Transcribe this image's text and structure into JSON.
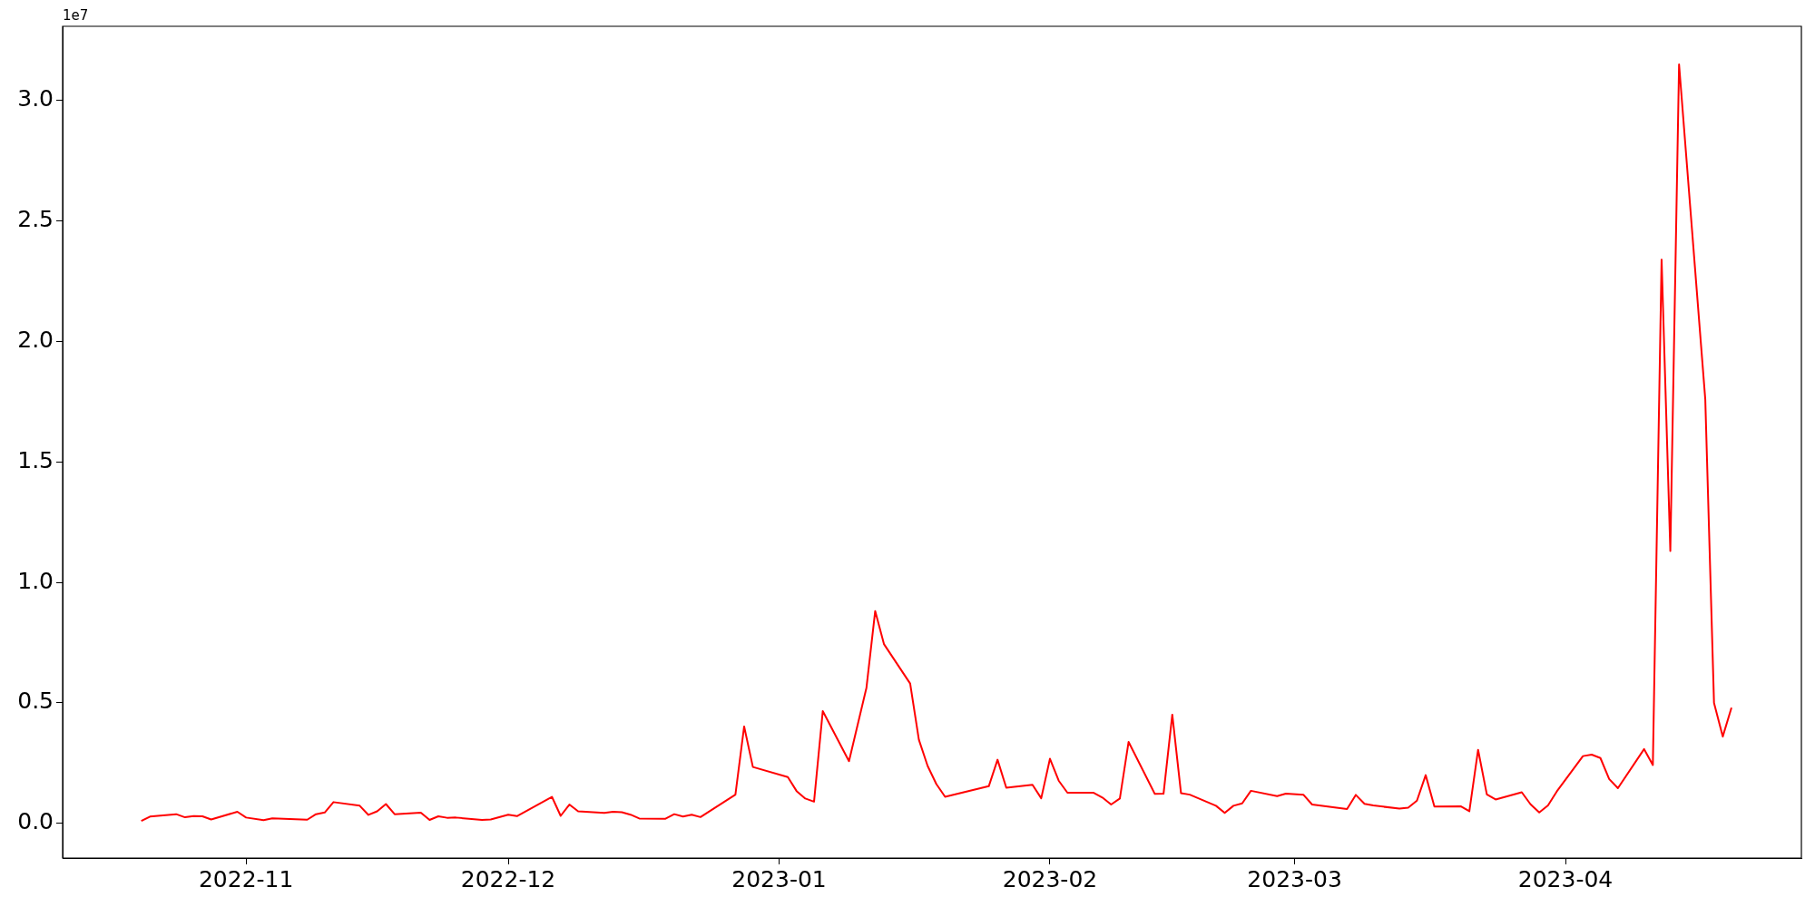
{
  "chart_data": {
    "type": "line",
    "x": [
      "2022-10-20",
      "2022-10-21",
      "2022-10-24",
      "2022-10-25",
      "2022-10-26",
      "2022-10-27",
      "2022-10-28",
      "2022-10-31",
      "2022-11-01",
      "2022-11-03",
      "2022-11-04",
      "2022-11-08",
      "2022-11-09",
      "2022-11-10",
      "2022-11-11",
      "2022-11-14",
      "2022-11-15",
      "2022-11-16",
      "2022-11-17",
      "2022-11-18",
      "2022-11-21",
      "2022-11-22",
      "2022-11-23",
      "2022-11-24",
      "2022-11-25",
      "2022-11-28",
      "2022-11-29",
      "2022-12-01",
      "2022-12-02",
      "2022-12-06",
      "2022-12-07",
      "2022-12-08",
      "2022-12-09",
      "2022-12-12",
      "2022-12-13",
      "2022-12-14",
      "2022-12-15",
      "2022-12-16",
      "2022-12-19",
      "2022-12-20",
      "2022-12-21",
      "2022-12-22",
      "2022-12-23",
      "2022-12-27",
      "2022-12-28",
      "2022-12-29",
      "2023-01-02",
      "2023-01-03",
      "2023-01-04",
      "2023-01-05",
      "2023-01-06",
      "2023-01-09",
      "2023-01-11",
      "2023-01-12",
      "2023-01-13",
      "2023-01-16",
      "2023-01-17",
      "2023-01-18",
      "2023-01-19",
      "2023-01-20",
      "2023-01-25",
      "2023-01-26",
      "2023-01-27",
      "2023-01-30",
      "2023-01-31",
      "2023-02-01",
      "2023-02-02",
      "2023-02-03",
      "2023-02-06",
      "2023-02-07",
      "2023-02-08",
      "2023-02-09",
      "2023-02-10",
      "2023-02-13",
      "2023-02-14",
      "2023-02-15",
      "2023-02-16",
      "2023-02-17",
      "2023-02-20",
      "2023-02-21",
      "2023-02-22",
      "2023-02-23",
      "2023-02-24",
      "2023-02-27",
      "2023-02-28",
      "2023-03-02",
      "2023-03-03",
      "2023-03-07",
      "2023-03-08",
      "2023-03-09",
      "2023-03-10",
      "2023-03-13",
      "2023-03-14",
      "2023-03-15",
      "2023-03-16",
      "2023-03-17",
      "2023-03-20",
      "2023-03-21",
      "2023-03-22",
      "2023-03-23",
      "2023-03-24",
      "2023-03-27",
      "2023-03-28",
      "2023-03-29",
      "2023-03-30",
      "2023-03-31",
      "2023-04-03",
      "2023-04-04",
      "2023-04-05",
      "2023-04-06",
      "2023-04-07",
      "2023-04-10",
      "2023-04-11",
      "2023-04-12",
      "2023-04-13",
      "2023-04-14",
      "2023-04-17",
      "2023-04-18",
      "2023-04-19",
      "2023-04-20"
    ],
    "series": [
      {
        "color": "#ff0000",
        "values": [
          0.01,
          0.028,
          0.038,
          0.025,
          0.03,
          0.029,
          0.016,
          0.048,
          0.024,
          0.013,
          0.021,
          0.015,
          0.038,
          0.045,
          0.088,
          0.073,
          0.035,
          0.05,
          0.08,
          0.038,
          0.044,
          0.014,
          0.029,
          0.023,
          0.024,
          0.014,
          0.016,
          0.036,
          0.03,
          0.11,
          0.031,
          0.078,
          0.05,
          0.043,
          0.048,
          0.046,
          0.036,
          0.02,
          0.019,
          0.038,
          0.028,
          0.036,
          0.026,
          0.119,
          0.402,
          0.234,
          0.192,
          0.134,
          0.103,
          0.09,
          0.466,
          0.258,
          0.563,
          0.881,
          0.744,
          0.58,
          0.347,
          0.238,
          0.163,
          0.11,
          0.154,
          0.264,
          0.148,
          0.16,
          0.104,
          0.268,
          0.177,
          0.127,
          0.127,
          0.107,
          0.078,
          0.103,
          0.338,
          0.122,
          0.123,
          0.451,
          0.125,
          0.119,
          0.073,
          0.043,
          0.073,
          0.083,
          0.135,
          0.113,
          0.123,
          0.119,
          0.078,
          0.059,
          0.118,
          0.081,
          0.074,
          0.061,
          0.065,
          0.094,
          0.2,
          0.07,
          0.071,
          0.05,
          0.305,
          0.12,
          0.099,
          0.129,
          0.079,
          0.045,
          0.074,
          0.132,
          0.279,
          0.285,
          0.271,
          0.184,
          0.146,
          0.308,
          0.242,
          2.34,
          1.13,
          3.15,
          1.76,
          0.5,
          0.36,
          0.48
        ]
      }
    ],
    "xlim": [
      "2022-10-11",
      "2023-04-28"
    ],
    "xticks": [
      {
        "value": "2022-11-01",
        "label": "2022-11"
      },
      {
        "value": "2022-12-01",
        "label": "2022-12"
      },
      {
        "value": "2023-01-01",
        "label": "2023-01"
      },
      {
        "value": "2023-02-01",
        "label": "2023-02"
      },
      {
        "value": "2023-03-01",
        "label": "2023-03"
      },
      {
        "value": "2023-04-01",
        "label": "2023-04"
      }
    ],
    "ylim": [
      -0.144,
      3.308
    ],
    "yticks": [
      {
        "value": 0,
        "label": "0.0"
      },
      0.5,
      {
        "value": 1,
        "label": "1.0"
      },
      1.5,
      {
        "value": 2,
        "label": "2.0"
      },
      2.5,
      {
        "value": 3,
        "label": "3.0"
      }
    ],
    "annotations": [
      "1e7"
    ],
    "grid": false,
    "marker": "none",
    "line_style": "solid"
  }
}
